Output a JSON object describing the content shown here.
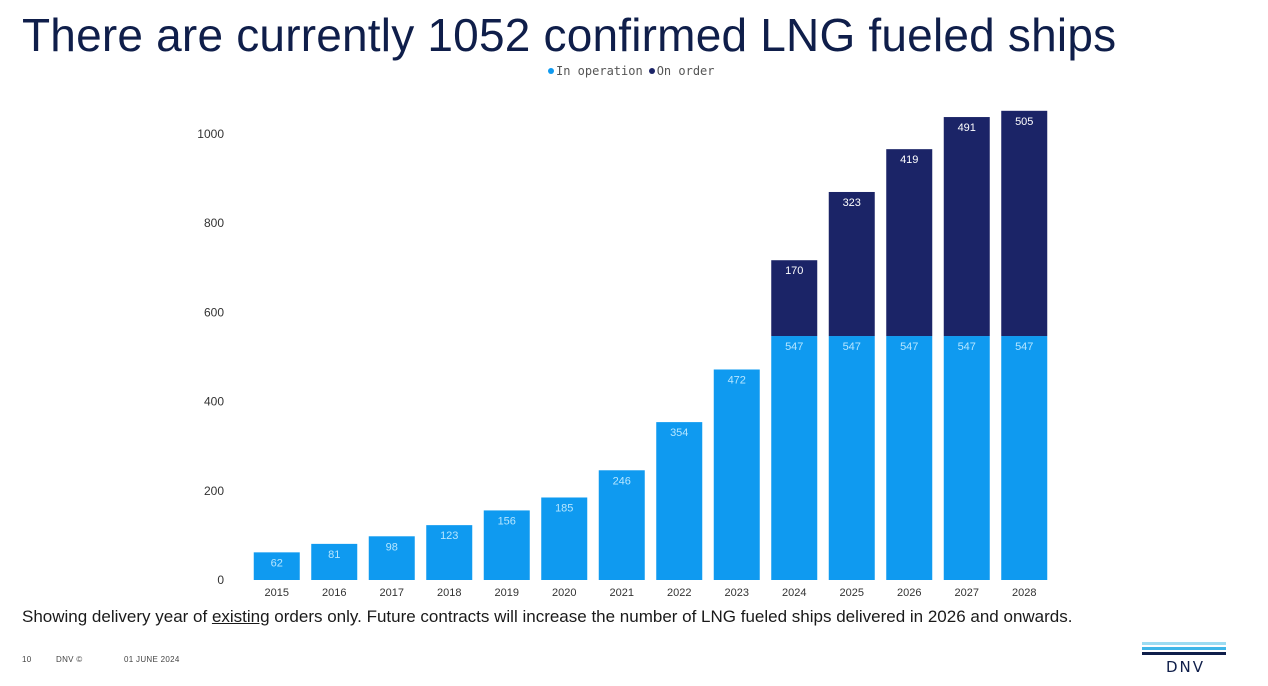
{
  "slide": {
    "title": "There are currently 1052 confirmed LNG fueled ships",
    "footnote_pre": "Showing delivery year of ",
    "footnote_underlined": "existing",
    "footnote_post": " orders only. Future contracts will increase the number of LNG fueled ships delivered in 2026 and onwards.",
    "footer_page": "10",
    "footer_org": "DNV ©",
    "footer_date": "01 JUNE 2024",
    "logo_text": "DNV"
  },
  "colors": {
    "in_operation": "#0f9af0",
    "on_order": "#1b2467",
    "label_on_operation": "#b6e6ff",
    "label_on_order": "#ffffff",
    "logo_stripes": [
      "#9ddcf2",
      "#3fb6e8",
      "#0f1e4a"
    ]
  },
  "chart_data": {
    "type": "bar",
    "stacked": true,
    "title": "",
    "xlabel": "",
    "ylabel": "",
    "categories": [
      "2015",
      "2016",
      "2017",
      "2018",
      "2019",
      "2020",
      "2021",
      "2022",
      "2023",
      "2024",
      "2025",
      "2026",
      "2027",
      "2028"
    ],
    "series": [
      {
        "name": "In operation",
        "values": [
          62,
          81,
          98,
          123,
          156,
          185,
          246,
          354,
          472,
          547,
          547,
          547,
          547,
          547
        ]
      },
      {
        "name": "On order",
        "values": [
          0,
          0,
          0,
          0,
          0,
          0,
          0,
          0,
          0,
          170,
          323,
          419,
          491,
          505
        ]
      }
    ],
    "ylim": [
      0,
      1000
    ],
    "yticks": [
      0,
      200,
      400,
      600,
      800,
      1000
    ],
    "grid": false,
    "legend": "top-center"
  }
}
